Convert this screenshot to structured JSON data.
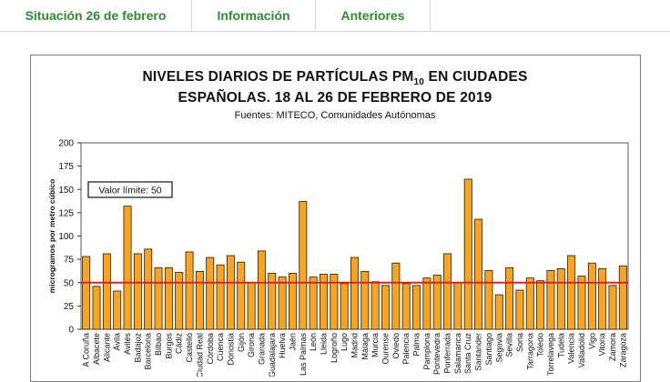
{
  "tabs": [
    {
      "label": "Situación 26 de febrero"
    },
    {
      "label": "Información"
    },
    {
      "label": "Anteriores"
    }
  ],
  "colors": {
    "tab_text": "#2e8b2e",
    "bar": "#f7a521",
    "bar_edge": "#2b1a00",
    "limit_line": "#e02020"
  },
  "chart_data": {
    "type": "bar",
    "title_line1_prefix": "NIVELES DIARIOS DE PARTÍCULAS PM",
    "title_sub": "10",
    "title_line1_suffix": " EN CIUDADES",
    "title_line2": "ESPAÑOLAS. 18 AL 26 DE FEBRERO DE 2019",
    "source": "Fuentes: MITECO, Comunidades Autónomas",
    "ylabel": "microgramos por metro cúbico",
    "xlabel": "",
    "ylim": [
      0,
      200
    ],
    "yticks": [
      0,
      25,
      50,
      75,
      100,
      125,
      150,
      175,
      200
    ],
    "limit_value": 50,
    "limit_label": "Valor límite: 50",
    "categories": [
      "A Coruña",
      "Albacete",
      "Alicante",
      "Ávila",
      "Avilés",
      "Badajoz",
      "Barcelona",
      "Bilbao",
      "Burgos",
      "Cádiz",
      "Castelló",
      "Ciudad Real",
      "Córdoba",
      "Cuenca",
      "Donostia",
      "Gijón",
      "Girona",
      "Granada",
      "Guadalajara",
      "Huelva",
      "Jaén",
      "Las Palmas",
      "León",
      "Lleida",
      "Logroño",
      "Lugo",
      "Madrid",
      "Málaga",
      "Murcia",
      "Ourense",
      "Oviedo",
      "Palencia",
      "Palma",
      "Pamplona",
      "Pontevedra",
      "Ponferrada",
      "Salamanca",
      "Santa Cruz",
      "Santander",
      "Santiago",
      "Segovia",
      "Sevilla",
      "Soria",
      "Tarragona",
      "Toledo",
      "Torrelavega",
      "Tudela",
      "Valencia",
      "Valladolid",
      "Vigo",
      "Vitoria",
      "Zamora",
      "Zaragoza"
    ],
    "values": [
      78,
      46,
      81,
      41,
      132,
      81,
      86,
      66,
      66,
      61,
      83,
      62,
      77,
      69,
      79,
      72,
      50,
      84,
      60,
      56,
      60,
      137,
      56,
      59,
      59,
      49,
      77,
      62,
      51,
      47,
      71,
      49,
      47,
      55,
      58,
      81,
      50,
      161,
      118,
      63,
      37,
      66,
      42,
      55,
      52,
      63,
      65,
      79,
      57,
      71,
      65,
      47,
      68
    ]
  }
}
